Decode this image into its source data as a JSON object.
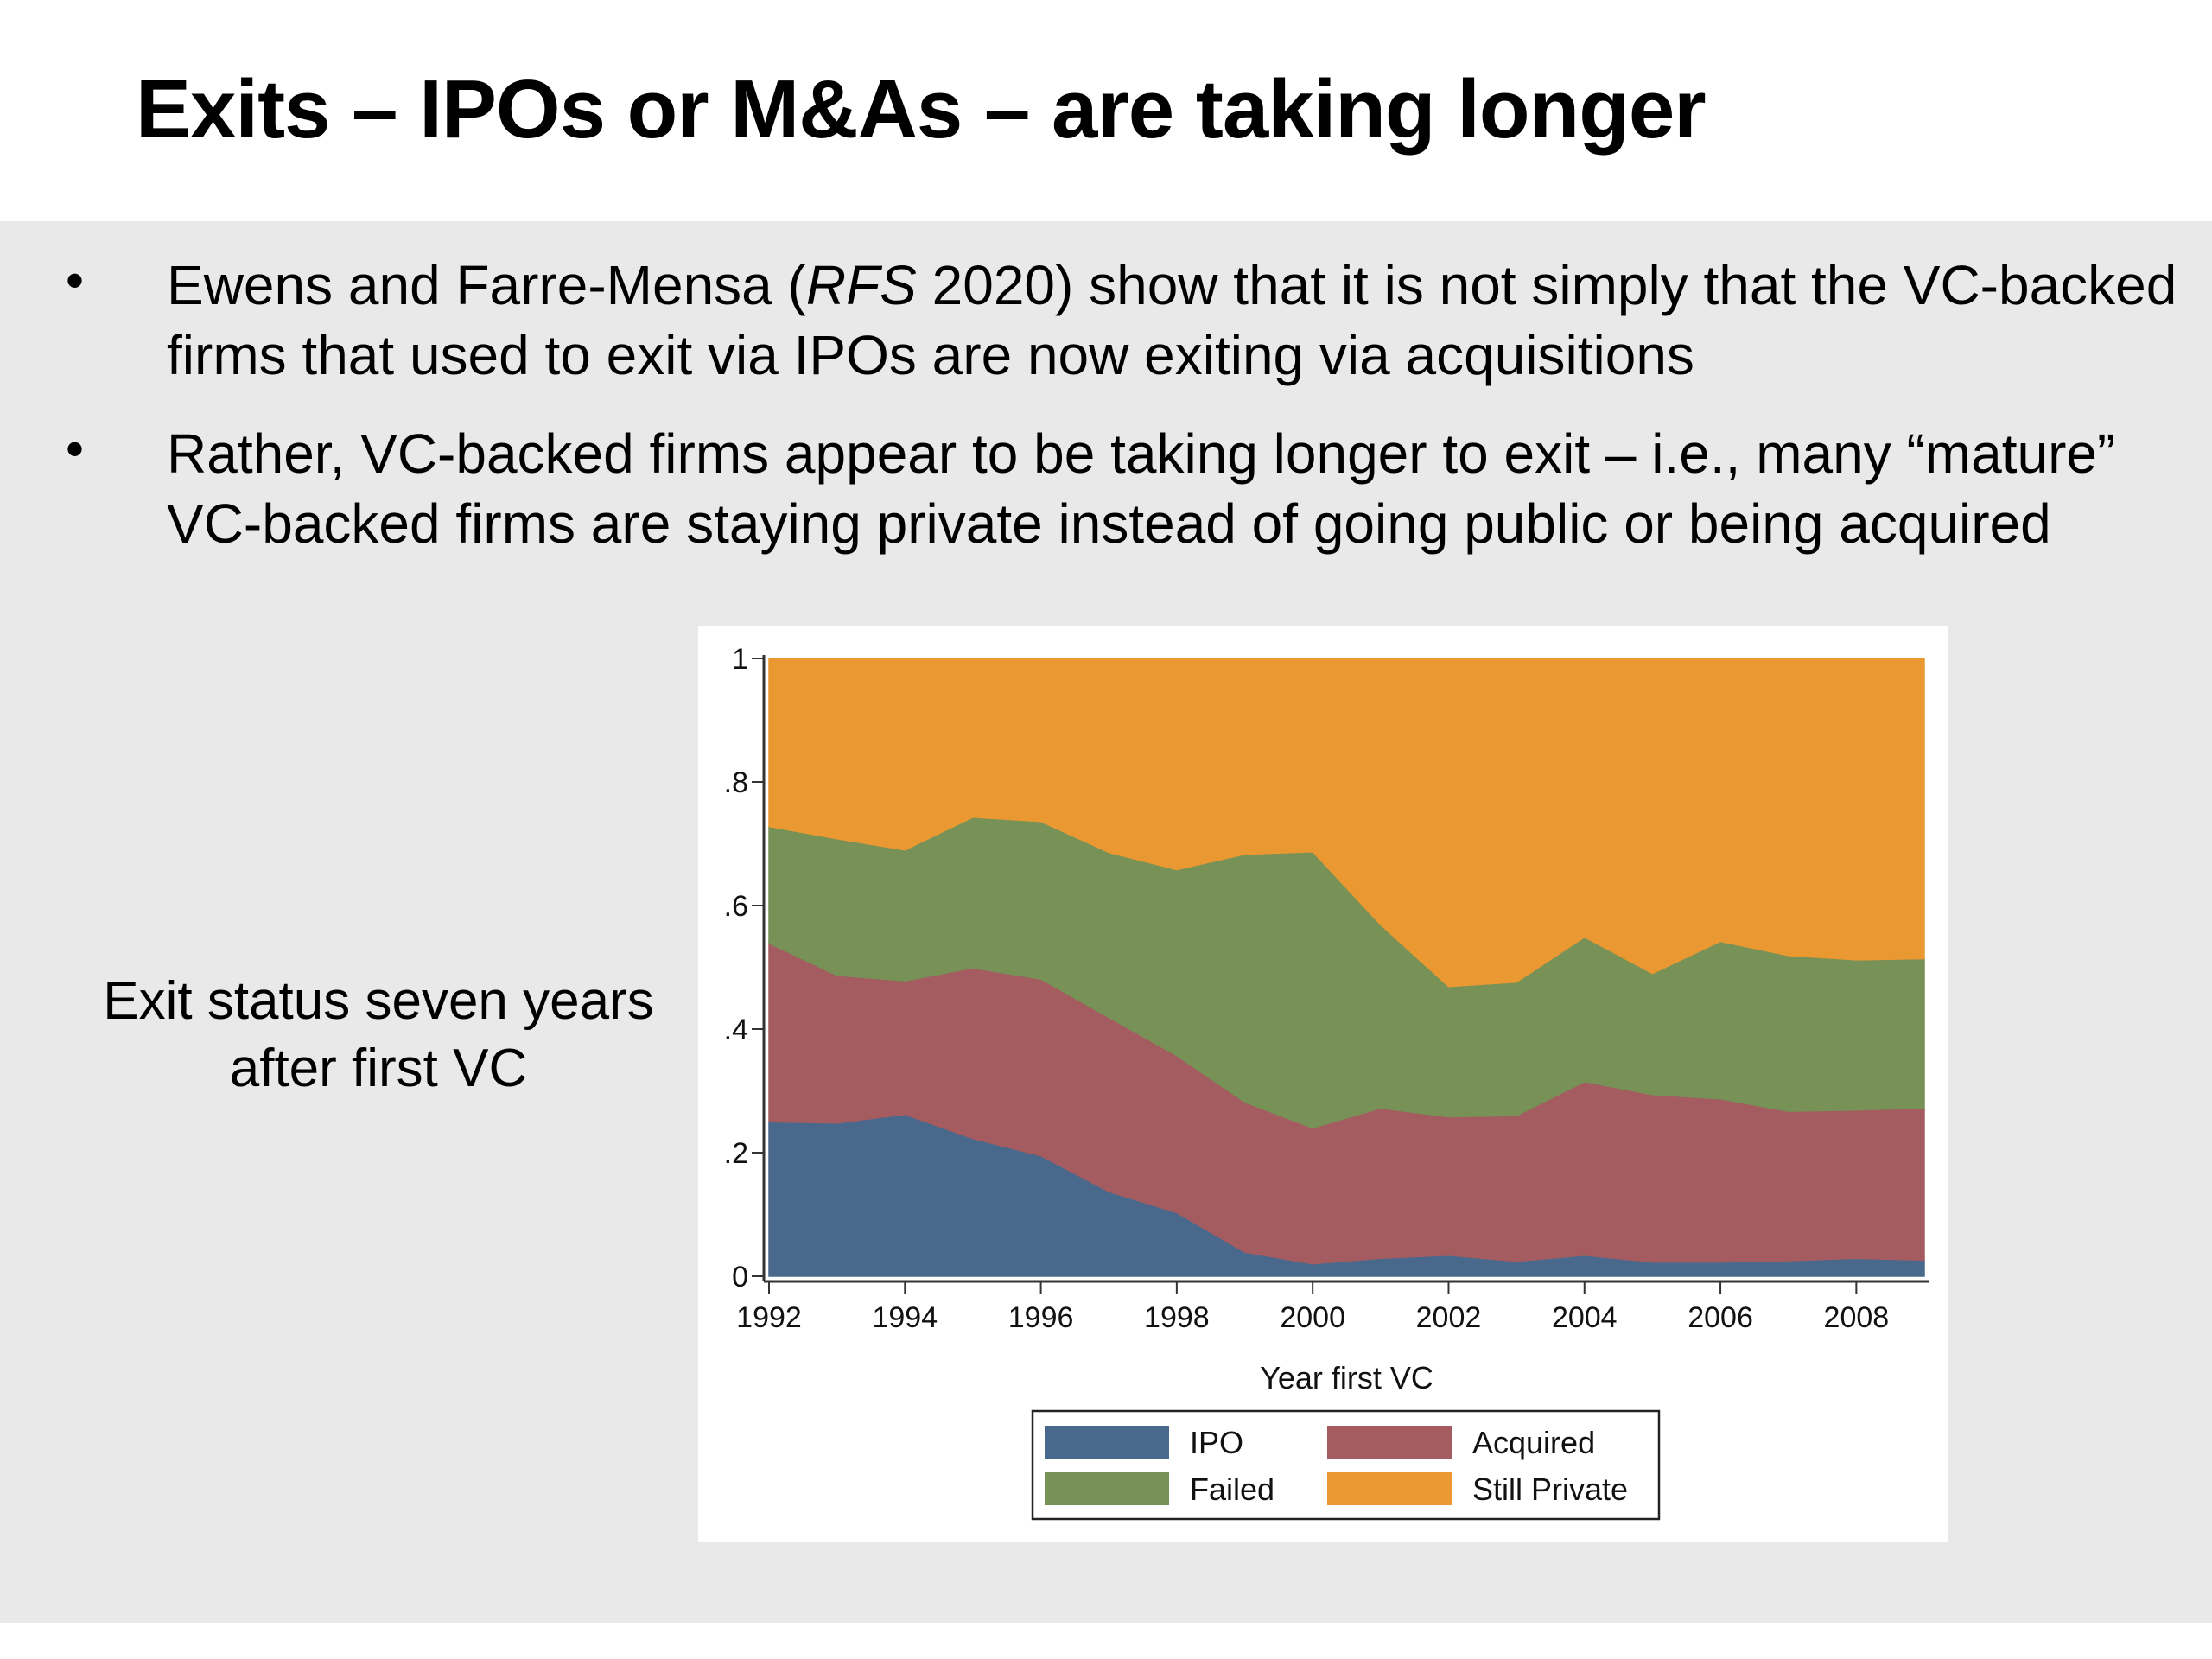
{
  "slide": {
    "title": "Exits – IPOs or M&As – are taking longer",
    "bullets": [
      {
        "marker": "•",
        "parts": [
          {
            "text": "Ewens and Farre-Mensa (",
            "italic": false
          },
          {
            "text": "RFS",
            "italic": true
          },
          {
            "text": " 2020) show that it is not simply that the VC-backed firms that used to exit via IPOs are now exiting via acquisitions",
            "italic": false
          }
        ]
      },
      {
        "marker": "•",
        "parts": [
          {
            "text": "Rather, VC-backed firms appear to be taking longer to exit – i.e., many “mature” VC-backed firms are staying private instead of going public or being acquired",
            "italic": false
          }
        ]
      }
    ],
    "side_label": "Exit status seven years after first VC"
  },
  "chart_data": {
    "type": "area",
    "stacked": true,
    "title": "",
    "xlabel": "Year first VC",
    "ylabel": "",
    "x": [
      1992,
      1993,
      1994,
      1995,
      1996,
      1997,
      1998,
      1999,
      2000,
      2001,
      2002,
      2003,
      2004,
      2005,
      2006,
      2007,
      2008,
      2009
    ],
    "xlim": [
      1992,
      2009
    ],
    "ylim": [
      0,
      1
    ],
    "xticks": [
      1992,
      1994,
      1996,
      1998,
      2000,
      2002,
      2004,
      2006,
      2008
    ],
    "xtick_labels": [
      "1992",
      "1994",
      "1996",
      "1998",
      "2000",
      "2002",
      "2004",
      "2006",
      "2008"
    ],
    "yticks": [
      0,
      0.2,
      0.4,
      0.6,
      0.8,
      1
    ],
    "ytick_labels": [
      "0",
      ".2",
      ".4",
      ".6",
      ".8",
      "1"
    ],
    "grid": false,
    "legend_position": "bottom",
    "series": [
      {
        "name": "IPO",
        "color": "#48698c",
        "values": [
          0.25,
          0.248,
          0.262,
          0.223,
          0.195,
          0.137,
          0.103,
          0.039,
          0.02,
          0.029,
          0.034,
          0.024,
          0.034,
          0.023,
          0.023,
          0.025,
          0.029,
          0.026
        ]
      },
      {
        "name": "Acquired",
        "color": "#a45c60",
        "values": [
          0.289,
          0.239,
          0.216,
          0.276,
          0.286,
          0.282,
          0.254,
          0.243,
          0.22,
          0.243,
          0.224,
          0.236,
          0.281,
          0.271,
          0.264,
          0.242,
          0.24,
          0.246
        ]
      },
      {
        "name": "Failed",
        "color": "#779156",
        "values": [
          0.189,
          0.221,
          0.212,
          0.244,
          0.255,
          0.267,
          0.301,
          0.401,
          0.447,
          0.297,
          0.211,
          0.216,
          0.234,
          0.196,
          0.255,
          0.252,
          0.243,
          0.242
        ]
      },
      {
        "name": "Still Private",
        "color": "#e99832",
        "values": [
          0.272,
          0.292,
          0.31,
          0.257,
          0.264,
          0.314,
          0.342,
          0.317,
          0.313,
          0.431,
          0.531,
          0.524,
          0.451,
          0.51,
          0.458,
          0.481,
          0.488,
          0.486
        ]
      }
    ],
    "legend": [
      {
        "label": "IPO",
        "color": "#48698c"
      },
      {
        "label": "Acquired",
        "color": "#a45c60"
      },
      {
        "label": "Failed",
        "color": "#779156"
      },
      {
        "label": "Still Private",
        "color": "#e99832"
      }
    ]
  }
}
